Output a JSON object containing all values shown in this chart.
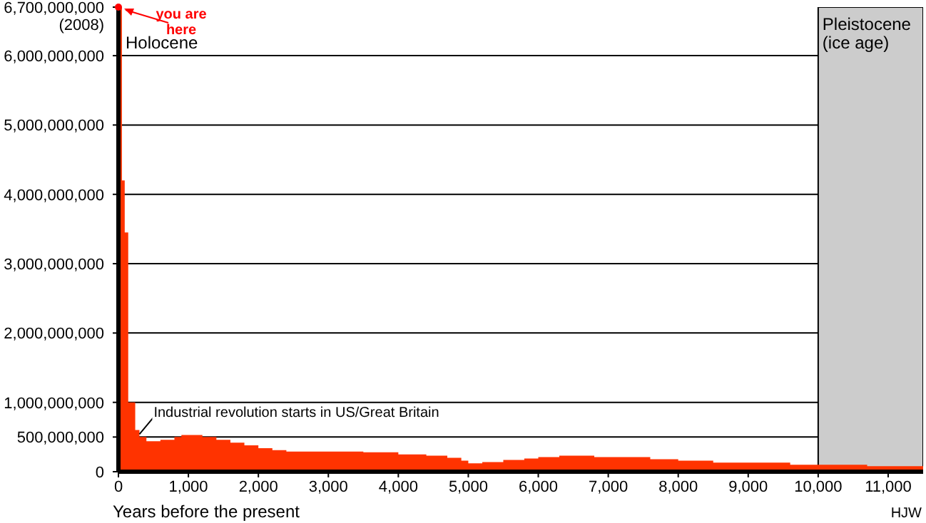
{
  "chart_data": {
    "type": "area",
    "xlabel": "Years before the present",
    "x": [
      0,
      50,
      90,
      140,
      240,
      300,
      400,
      600,
      800,
      900,
      1200,
      1400,
      1600,
      1800,
      2000,
      2200,
      2400,
      3500,
      4000,
      4400,
      4700,
      4900,
      5000,
      5200,
      5500,
      5800,
      6000,
      6300,
      6800,
      7600,
      8000,
      8500,
      9600,
      10700,
      11500
    ],
    "series": [
      {
        "color": "#ff3300",
        "values": [
          6700000000,
          4200000000,
          3450000000,
          1000000000,
          600000000,
          500000000,
          440000000,
          460000000,
          500000000,
          530000000,
          500000000,
          460000000,
          420000000,
          380000000,
          340000000,
          310000000,
          290000000,
          280000000,
          250000000,
          230000000,
          200000000,
          160000000,
          120000000,
          140000000,
          170000000,
          190000000,
          210000000,
          230000000,
          210000000,
          180000000,
          160000000,
          130000000,
          100000000,
          80000000,
          80000000
        ]
      }
    ],
    "xlim": [
      0,
      11500
    ],
    "xticks": [
      {
        "value": 0,
        "label": "0"
      },
      {
        "value": 1000,
        "label": "1,000"
      },
      {
        "value": 2000,
        "label": "2,000"
      },
      {
        "value": 3000,
        "label": "3,000"
      },
      {
        "value": 4000,
        "label": "4,000"
      },
      {
        "value": 5000,
        "label": "5,000"
      },
      {
        "value": 6000,
        "label": "6,000"
      },
      {
        "value": 7000,
        "label": "7,000"
      },
      {
        "value": 8000,
        "label": "8,000"
      },
      {
        "value": 9000,
        "label": "9,000"
      },
      {
        "value": 10000,
        "label": "10,000"
      },
      {
        "value": 11000,
        "label": "11,000"
      }
    ],
    "ylim": [
      0,
      6700000000
    ],
    "yticks": [
      {
        "value": 0,
        "label": "0"
      },
      {
        "value": 500000000,
        "label": "500,000,000"
      },
      {
        "value": 1000000000,
        "label": "1,000,000,000"
      },
      {
        "value": 2000000000,
        "label": "2,000,000,000"
      },
      {
        "value": 3000000000,
        "label": "3,000,000,000"
      },
      {
        "value": 4000000000,
        "label": "4,000,000,000"
      },
      {
        "value": 5000000000,
        "label": "5,000,000,000"
      },
      {
        "value": 6000000000,
        "label": "6,000,000,000"
      },
      {
        "value": 6700000000,
        "label": "6,700,000,000\n(2008)"
      }
    ],
    "grid": "y",
    "bands": [
      {
        "axis": "x",
        "from": 10000,
        "to": 11500,
        "label": "Pleistocene\n(ice age)",
        "color": "#cccccc"
      }
    ],
    "annotations": [
      "Holocene",
      "HJW",
      {
        "text": "you are here",
        "x": 0,
        "y": 6700000000
      },
      {
        "text": "Industrial revolution starts in US/Great Britain",
        "x": 300,
        "y": 500000000
      }
    ]
  }
}
